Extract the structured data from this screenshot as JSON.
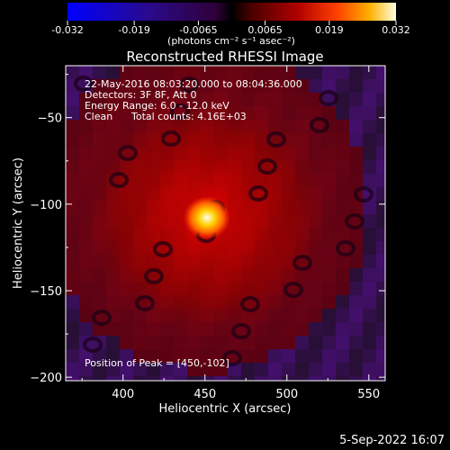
{
  "colorbar": {
    "ticks": [
      "-0.032",
      "-0.019",
      "-0.0065",
      "0.0065",
      "0.019",
      "0.032"
    ],
    "tick_values": [
      -0.032,
      -0.019,
      -0.0065,
      0.0065,
      0.019,
      0.032
    ],
    "range": [
      -0.032,
      0.032
    ],
    "unit_label": "(photons cm⁻² s⁻¹ asec⁻²)"
  },
  "chart_data": {
    "type": "heatmap",
    "title": "Reconstructed RHESSI Image",
    "xlabel": "Heliocentric X (arcsec)",
    "ylabel": "Heliocentric Y (arcsec)",
    "xlim": [
      365,
      560
    ],
    "ylim": [
      -202,
      -20
    ],
    "xticks": [
      400,
      450,
      500,
      550
    ],
    "yticks": [
      -50,
      -100,
      -150,
      -200
    ],
    "info_lines": [
      "22-May-2016 08:03:20.000 to 08:04:36.000",
      "Detectors: 3F 8F, Att 0",
      "Energy Range: 6.0 - 12.0 keV",
      "Clean",
      "Total counts: 4.16E+03"
    ],
    "peak_label": "Position of Peak = [450,-102]",
    "peak": {
      "x": 450,
      "y": -102
    }
  },
  "footer_date": "5-Sep-2022 16:07",
  "colors": {
    "background": "#000000",
    "text": "#ffffff"
  }
}
